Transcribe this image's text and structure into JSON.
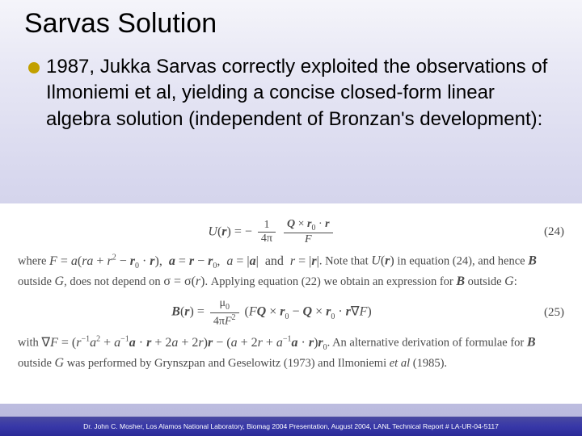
{
  "title": "Sarvas Solution",
  "bullet_color": "#c2a000",
  "body": "1987, Jukka Sarvas correctly exploited the observations of Ilmoniemi et al, yielding a concise closed-form linear algebra solution (independent of Bronzan's development):",
  "eq24_num": "(24)",
  "eq25_num": "(25)",
  "where_lead": "where ",
  "where_tail_1": ". Note that ",
  "where_tail_2": " in equation (24), and hence ",
  "where_tail_3": " outside ",
  "where_tail_4": ", does not depend on ",
  "where_tail_5": ". Applying equation (22) we obtain an expression for ",
  "where_tail_6": " outside ",
  "where_tail_7": ":",
  "grad_lead": "with ",
  "grad_tail": ". An alternative derivation of formulae for ",
  "grad_tail_2": " outside ",
  "grad_tail_3": " was performed by Grynszpan and Geselowitz (1973) and Ilmoniemi ",
  "grad_tail_4": " (1985).",
  "et_al": "et al",
  "footer": "Dr. John C. Mosher, Los Alamos National Laboratory, Biomag 2004 Presentation, August 2004, LANL Technical Report # LA-UR-04-5117",
  "bg_white": "#ffffff"
}
